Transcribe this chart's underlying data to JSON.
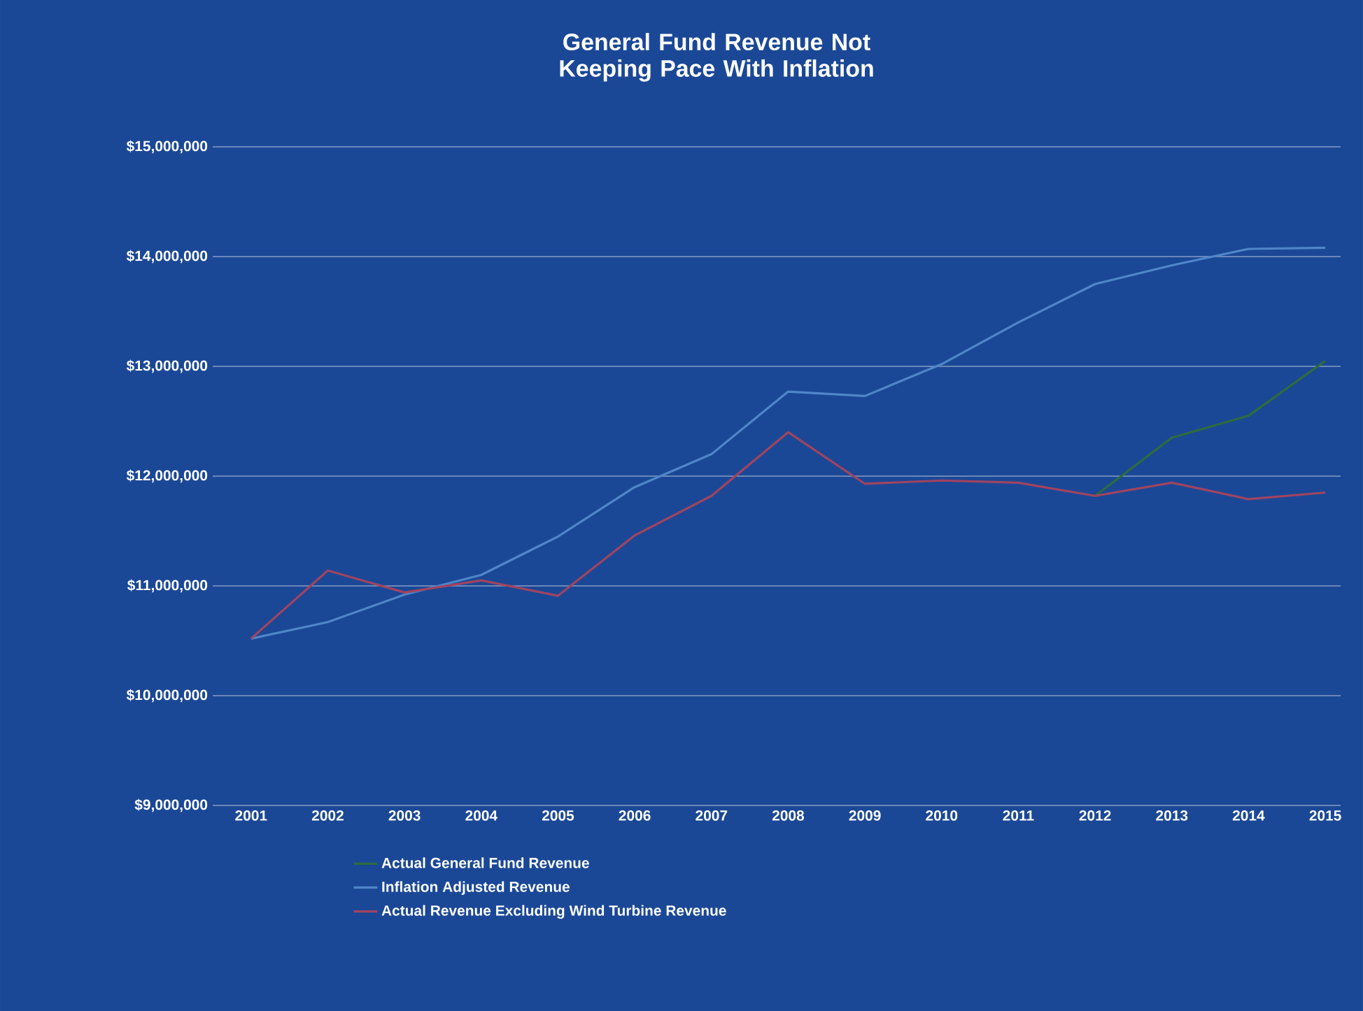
{
  "chart_data": {
    "type": "line",
    "title": "General Fund Revenue Not Keeping Pace With Inflation",
    "categories": [
      "2001",
      "2002",
      "2003",
      "2004",
      "2005",
      "2006",
      "2007",
      "2008",
      "2009",
      "2010",
      "2011",
      "2012",
      "2013",
      "2014",
      "2015"
    ],
    "series": [
      {
        "name": "Actual General Fund Revenue",
        "color": "#2e6b3e",
        "values": [
          null,
          null,
          null,
          null,
          null,
          null,
          null,
          null,
          null,
          null,
          null,
          11820000,
          12350000,
          12550000,
          13050000
        ]
      },
      {
        "name": "Inflation Adjusted Revenue",
        "color": "#4f86c9",
        "values": [
          10520000,
          10670000,
          10920000,
          11100000,
          11450000,
          11900000,
          12200000,
          12770000,
          12730000,
          13020000,
          13400000,
          13750000,
          13920000,
          14070000,
          14080000
        ]
      },
      {
        "name": "Actual Revenue Excluding Wind Turbine Revenue",
        "color": "#a04460",
        "values": [
          10520000,
          11140000,
          10940000,
          11050000,
          10910000,
          11460000,
          11820000,
          12400000,
          11930000,
          11960000,
          11940000,
          11820000,
          11940000,
          11790000,
          11850000
        ]
      }
    ],
    "ylim": [
      9000000,
      15000000
    ],
    "yticks": [
      {
        "value": 9000000,
        "label": "$9,000,000"
      },
      {
        "value": 10000000,
        "label": "$10,000,000"
      },
      {
        "value": 11000000,
        "label": "$11,000,000"
      },
      {
        "value": 12000000,
        "label": "$12,000,000"
      },
      {
        "value": 13000000,
        "label": "$13,000,000"
      },
      {
        "value": 14000000,
        "label": "$14,000,000"
      },
      {
        "value": 15000000,
        "label": "$15,000,000"
      }
    ],
    "grid": "y",
    "legend": "bottom",
    "marker": "none",
    "line_style": "solid"
  }
}
